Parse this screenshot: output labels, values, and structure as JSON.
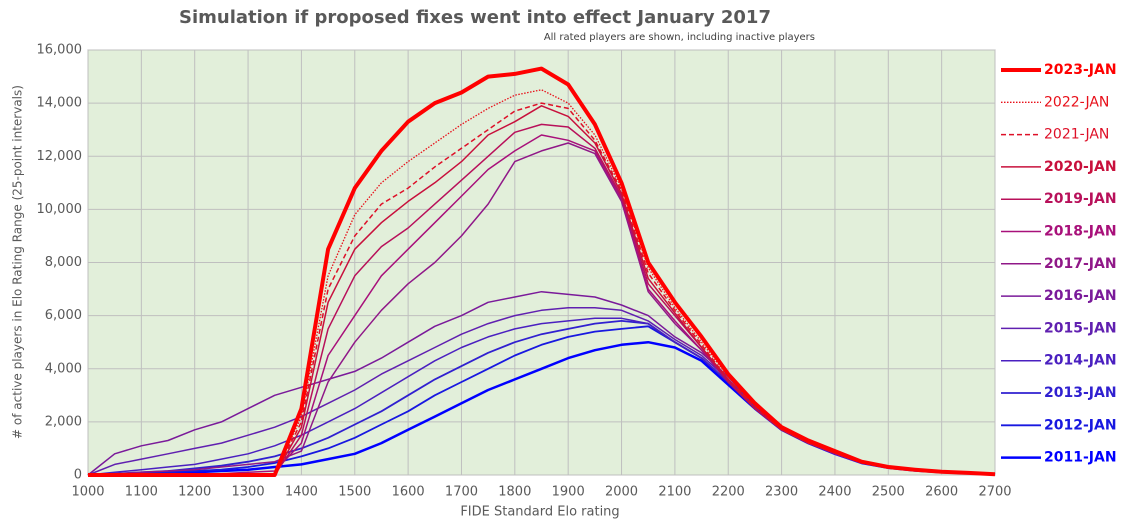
{
  "chart_data": {
    "type": "line",
    "title": "Simulation if proposed fixes went into effect January 2017",
    "subtitle": "All rated players are shown, including inactive players",
    "xlabel": "FIDE Standard Elo rating",
    "ylabel": "# of active players in Elo Rating Range (25-point intervals)",
    "x": [
      1000,
      1050,
      1100,
      1150,
      1200,
      1250,
      1300,
      1350,
      1400,
      1450,
      1500,
      1550,
      1600,
      1650,
      1700,
      1750,
      1800,
      1850,
      1900,
      1950,
      2000,
      2050,
      2100,
      2150,
      2200,
      2250,
      2300,
      2350,
      2400,
      2450,
      2500,
      2550,
      2600,
      2650,
      2700
    ],
    "xlim": [
      1000,
      2700
    ],
    "xticks": [
      1000,
      1100,
      1200,
      1300,
      1400,
      1500,
      1600,
      1700,
      1800,
      1900,
      2000,
      2100,
      2200,
      2300,
      2400,
      2500,
      2600,
      2700
    ],
    "ylim": [
      0,
      16000
    ],
    "yticks": [
      0,
      {
        "value": 2000,
        "label": "2,000"
      },
      {
        "value": 4000,
        "label": "4,000"
      },
      {
        "value": 6000,
        "label": "6,000"
      },
      {
        "value": 8000,
        "label": "8,000"
      },
      {
        "value": 10000,
        "label": "10,000"
      },
      {
        "value": 12000,
        "label": "12,000"
      },
      {
        "value": 14000,
        "label": "14,000"
      },
      {
        "value": 16000,
        "label": "16,000"
      }
    ],
    "grid": true,
    "background": "#e2efda",
    "legend": "right",
    "series": [
      {
        "name": "2023-JAN",
        "color": "#ff0000",
        "style": "solid",
        "linewidth": 4,
        "values": [
          0,
          0,
          0,
          0,
          0,
          0,
          0,
          0,
          2500,
          8500,
          10800,
          12200,
          13300,
          14000,
          14400,
          15000,
          15100,
          15300,
          14700,
          13200,
          11000,
          8000,
          6500,
          5200,
          3800,
          2700,
          1800,
          1300,
          900,
          500,
          300,
          200,
          120,
          80,
          30
        ]
      },
      {
        "name": "2022-JAN",
        "color": "#e8101a",
        "style": "dotted",
        "linewidth": 1.3,
        "values": [
          0,
          0,
          0,
          0,
          0,
          0,
          0,
          0,
          2200,
          7500,
          9800,
          11000,
          11800,
          12500,
          13200,
          13800,
          14300,
          14500,
          14000,
          12800,
          10800,
          7800,
          6300,
          5000,
          3700,
          2600,
          1750,
          1250,
          850,
          480,
          290,
          190,
          110,
          75,
          30
        ]
      },
      {
        "name": "2021-JAN",
        "color": "#de1028",
        "style": "dashed",
        "linewidth": 1.5,
        "values": [
          0,
          0,
          0,
          0,
          0,
          0,
          0,
          0,
          2000,
          7000,
          9000,
          10200,
          10800,
          11600,
          12300,
          13000,
          13700,
          14000,
          13800,
          12600,
          10700,
          7600,
          6200,
          4900,
          3600,
          2600,
          1700,
          1200,
          850,
          470,
          280,
          180,
          110,
          70,
          30
        ]
      },
      {
        "name": "2020-JAN",
        "color": "#c8103c",
        "style": "solid",
        "linewidth": 1.5,
        "values": [
          0,
          0,
          0,
          0,
          0,
          0,
          0,
          0,
          1800,
          6500,
          8500,
          9500,
          10300,
          11000,
          11800,
          12800,
          13300,
          13900,
          13500,
          12500,
          10600,
          7400,
          6100,
          4800,
          3600,
          2500,
          1700,
          1200,
          820,
          460,
          280,
          180,
          100,
          70,
          30
        ]
      },
      {
        "name": "2019-JAN",
        "color": "#b8105a",
        "style": "solid",
        "linewidth": 1.5,
        "values": [
          0,
          0,
          0,
          0,
          0,
          0,
          0,
          0,
          1500,
          5500,
          7500,
          8600,
          9300,
          10200,
          11100,
          12000,
          12900,
          13200,
          13100,
          12300,
          10500,
          7200,
          6000,
          4800,
          3500,
          2500,
          1700,
          1200,
          820,
          460,
          270,
          180,
          100,
          70,
          30
        ]
      },
      {
        "name": "2018-JAN",
        "color": "#a8107a",
        "style": "solid",
        "linewidth": 1.5,
        "values": [
          0,
          0,
          0,
          0,
          0,
          50,
          100,
          150,
          1200,
          4500,
          6000,
          7500,
          8500,
          9500,
          10500,
          11500,
          12200,
          12800,
          12600,
          12200,
          10400,
          7000,
          5800,
          4700,
          3500,
          2500,
          1700,
          1200,
          800,
          450,
          270,
          170,
          100,
          70,
          30
        ]
      },
      {
        "name": "2017-JAN",
        "color": "#901888",
        "style": "solid",
        "linewidth": 1.5,
        "values": [
          0,
          50,
          100,
          150,
          200,
          300,
          400,
          500,
          900,
          3500,
          5000,
          6200,
          7200,
          8000,
          9000,
          10200,
          11800,
          12200,
          12500,
          12100,
          10300,
          6900,
          5700,
          4700,
          3500,
          2500,
          1700,
          1200,
          800,
          450,
          270,
          170,
          100,
          70,
          30
        ]
      },
      {
        "name": "2016-JAN",
        "color": "#7a1a9a",
        "style": "solid",
        "linewidth": 1.5,
        "values": [
          0,
          800,
          1100,
          1300,
          1700,
          2000,
          2500,
          3000,
          3300,
          3600,
          3900,
          4400,
          5000,
          5600,
          6000,
          6500,
          6700,
          6900,
          6800,
          6700,
          6400,
          6000,
          5200,
          4600,
          3700,
          2600,
          1800,
          1300,
          900,
          500,
          300,
          200,
          120,
          80,
          30
        ]
      },
      {
        "name": "2015-JAN",
        "color": "#6020b0",
        "style": "solid",
        "linewidth": 1.5,
        "values": [
          0,
          400,
          600,
          800,
          1000,
          1200,
          1500,
          1800,
          2200,
          2700,
          3200,
          3800,
          4300,
          4800,
          5300,
          5700,
          6000,
          6200,
          6300,
          6300,
          6200,
          5800,
          5100,
          4500,
          3600,
          2600,
          1800,
          1300,
          900,
          500,
          300,
          200,
          120,
          80,
          30
        ]
      },
      {
        "name": "2014-JAN",
        "color": "#4a20c0",
        "style": "solid",
        "linewidth": 1.5,
        "values": [
          0,
          100,
          200,
          300,
          400,
          600,
          800,
          1100,
          1500,
          2000,
          2500,
          3100,
          3700,
          4300,
          4800,
          5200,
          5500,
          5700,
          5800,
          5900,
          5900,
          5700,
          5000,
          4400,
          3500,
          2600,
          1800,
          1300,
          900,
          500,
          300,
          200,
          120,
          80,
          30
        ]
      },
      {
        "name": "2013-JAN",
        "color": "#3020d0",
        "style": "solid",
        "linewidth": 1.8,
        "values": [
          0,
          50,
          100,
          150,
          250,
          350,
          500,
          700,
          1000,
          1400,
          1900,
          2400,
          3000,
          3600,
          4100,
          4600,
          5000,
          5300,
          5500,
          5700,
          5800,
          5700,
          5000,
          4400,
          3500,
          2600,
          1800,
          1300,
          850,
          480,
          290,
          190,
          110,
          75,
          30
        ]
      },
      {
        "name": "2012-JAN",
        "color": "#1818e0",
        "style": "solid",
        "linewidth": 1.8,
        "values": [
          0,
          0,
          50,
          100,
          150,
          200,
          300,
          450,
          700,
          1000,
          1400,
          1900,
          2400,
          3000,
          3500,
          4000,
          4500,
          4900,
          5200,
          5400,
          5500,
          5600,
          5000,
          4400,
          3500,
          2500,
          1700,
          1200,
          820,
          460,
          280,
          180,
          100,
          70,
          30
        ]
      },
      {
        "name": "2011-JAN",
        "color": "#0000ff",
        "style": "solid",
        "linewidth": 2.5,
        "values": [
          0,
          0,
          0,
          50,
          100,
          150,
          200,
          300,
          400,
          600,
          800,
          1200,
          1700,
          2200,
          2700,
          3200,
          3600,
          4000,
          4400,
          4700,
          4900,
          5000,
          4800,
          4300,
          3400,
          2500,
          1700,
          1200,
          800,
          450,
          270,
          170,
          100,
          70,
          30
        ]
      }
    ]
  }
}
